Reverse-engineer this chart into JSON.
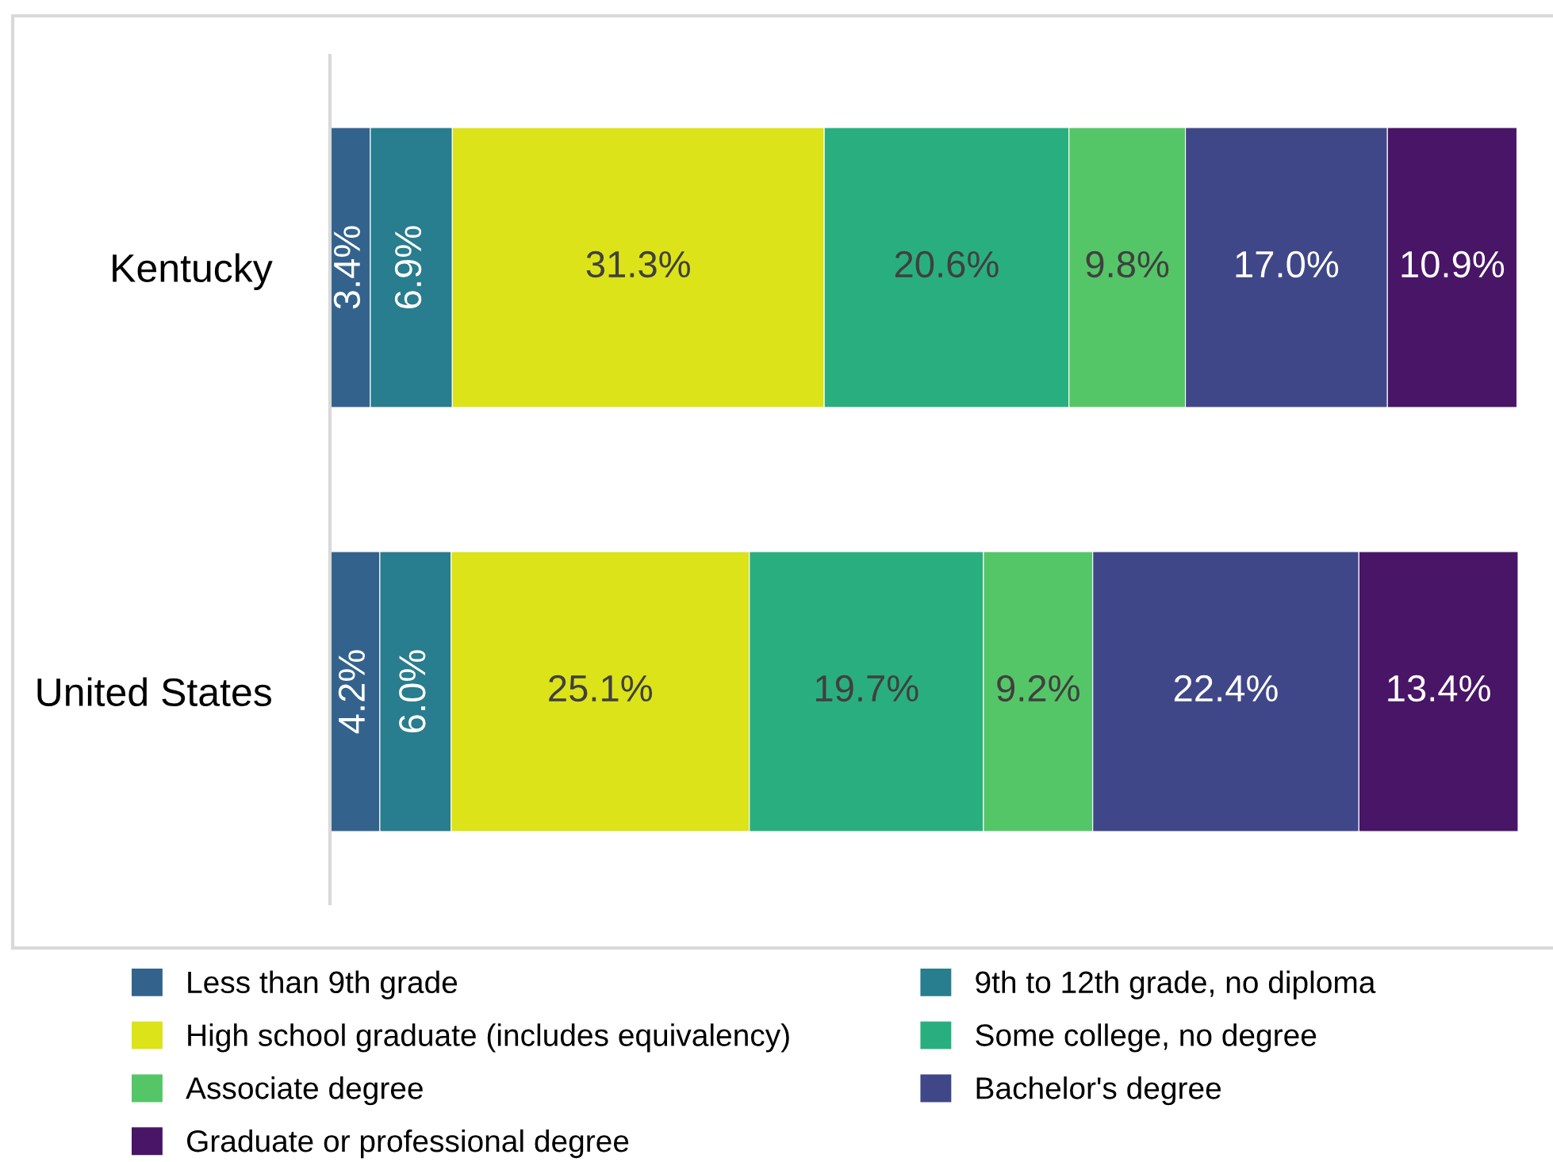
{
  "chart_data": {
    "type": "bar",
    "orientation": "horizontal",
    "stacked": true,
    "categories": [
      "Kentucky",
      "United States"
    ],
    "series": [
      {
        "name": "Less than 9th grade",
        "color": "#33638d",
        "values": [
          3.4,
          4.2
        ],
        "value_labels": [
          "3.4%",
          "4.2%"
        ]
      },
      {
        "name": "9th to 12th grade, no diploma",
        "color": "#287d8e",
        "values": [
          6.9,
          6.0
        ],
        "value_labels": [
          "6.9%",
          "6.0%"
        ]
      },
      {
        "name": "High school graduate (includes equivalency)",
        "color": "#dce319",
        "values": [
          31.3,
          25.1
        ],
        "value_labels": [
          "31.3%",
          "25.1%"
        ]
      },
      {
        "name": "Some college, no degree",
        "color": "#29af7f",
        "values": [
          20.6,
          19.7
        ],
        "value_labels": [
          "20.6%",
          "19.7%"
        ]
      },
      {
        "name": "Associate degree",
        "color": "#55c667",
        "values": [
          9.8,
          9.2
        ],
        "value_labels": [
          "9.8%",
          "9.2%"
        ]
      },
      {
        "name": "Bachelor's degree",
        "color": "#404788",
        "values": [
          17.0,
          22.4
        ],
        "value_labels": [
          "17.0%",
          "22.4%"
        ]
      },
      {
        "name": "Graduate or professional degree",
        "color": "#481567",
        "values": [
          10.9,
          13.4
        ],
        "value_labels": [
          "10.9%",
          "13.4%"
        ]
      }
    ],
    "legend": "bottom",
    "grid": false,
    "tick_labels": "y"
  }
}
